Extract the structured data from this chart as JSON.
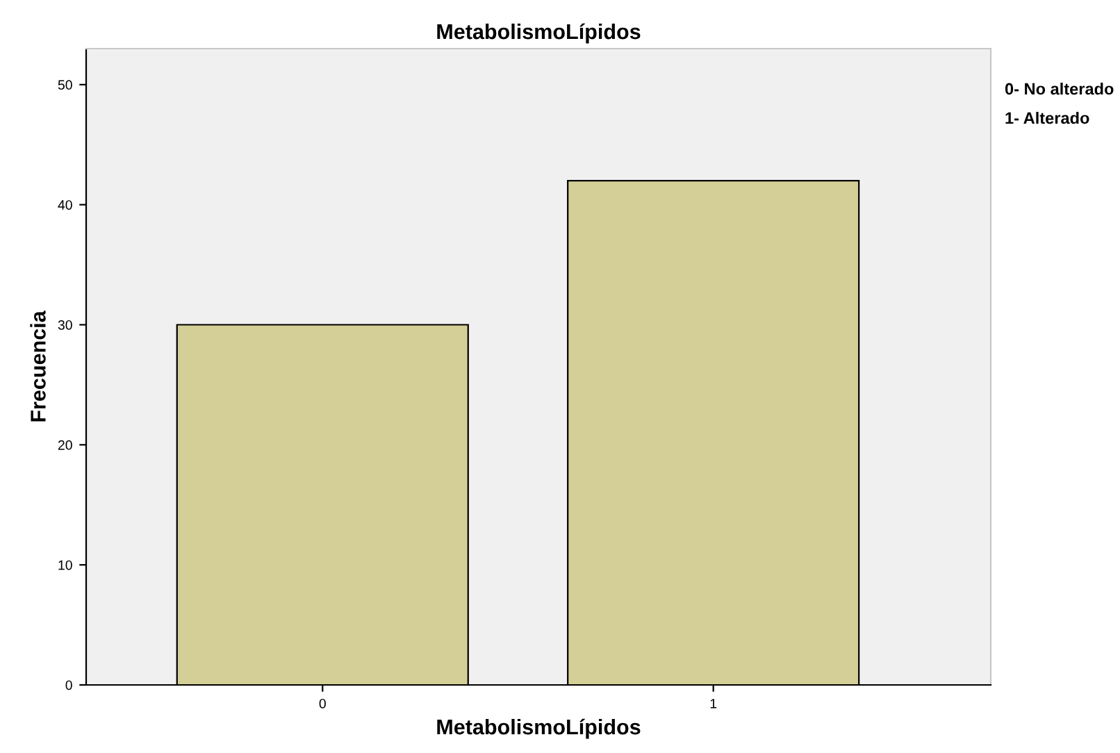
{
  "chart_data": {
    "type": "bar",
    "title": "MetabolismoLípidos",
    "xlabel": "MetabolismoLípidos",
    "ylabel": "Frecuencia",
    "categories": [
      "0",
      "1"
    ],
    "values": [
      30,
      42
    ],
    "color": "#d3cf96",
    "ylim": [
      0,
      53
    ],
    "yticks": [
      0,
      10,
      20,
      30,
      40,
      50
    ],
    "grid": false,
    "annotations": [
      "0- No alterado",
      "1- Alterado"
    ]
  }
}
